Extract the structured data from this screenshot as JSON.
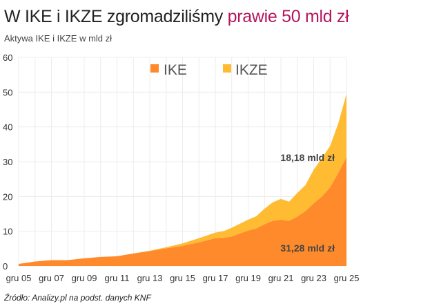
{
  "title": {
    "main": "W IKE i IKZE zgromadziliśmy ",
    "highlight": "prawie 50 mld zł",
    "highlight_color": "#b5175f"
  },
  "subtitle": "Aktywa IKE i IKZE w mld zł",
  "source": "Źródło: Analizy.pl na podst. danych KNF",
  "chart_data": {
    "type": "area",
    "stacked": true,
    "title": "",
    "xlabel": "",
    "ylabel": "",
    "ylim": [
      0,
      60
    ],
    "yticks": [
      0,
      10,
      20,
      30,
      40,
      50,
      60
    ],
    "grid": true,
    "legend_position": "top-center",
    "xtick_labels": [
      "gru 05",
      "gru 07",
      "gru 09",
      "gru 11",
      "gru 13",
      "gru 15",
      "gru 17",
      "gru 19",
      "gru 21",
      "gru 23",
      "gru 25"
    ],
    "x": [
      "2005-12",
      "2006-12",
      "2007-12",
      "2008-12",
      "2009-12",
      "2010-12",
      "2011-12",
      "2012-12",
      "2013-12",
      "2014-12",
      "2015-12",
      "2016-12",
      "2017-12",
      "2018-06",
      "2018-12",
      "2019-12",
      "2020-06",
      "2020-12",
      "2021-06",
      "2021-12",
      "2022-06",
      "2022-12",
      "2023-06",
      "2023-12",
      "2024-06",
      "2024-12",
      "2025-06",
      "2025-12"
    ],
    "series": [
      {
        "name": "IKE",
        "color": "#ff8a2b",
        "values": [
          0.6,
          1.3,
          1.7,
          1.7,
          2.2,
          2.6,
          2.8,
          3.6,
          4.3,
          5.1,
          5.8,
          6.8,
          8.0,
          8.1,
          8.5,
          10.2,
          10.8,
          12.0,
          13.0,
          13.3,
          13.0,
          14.2,
          15.8,
          18.0,
          20.0,
          22.6,
          26.8,
          31.28
        ]
      },
      {
        "name": "IKZE",
        "color": "#ffbc33",
        "values": [
          0,
          0,
          0,
          0,
          0,
          0,
          0,
          0,
          0.1,
          0.3,
          0.7,
          1.2,
          1.6,
          1.9,
          2.5,
          3.1,
          3.5,
          4.5,
          5.3,
          6.0,
          5.5,
          6.8,
          7.5,
          9.7,
          11.0,
          11.9,
          14.2,
          18.18
        ]
      }
    ],
    "annotations": [
      "18,18 mld zł",
      "31,28 mld zł"
    ]
  }
}
